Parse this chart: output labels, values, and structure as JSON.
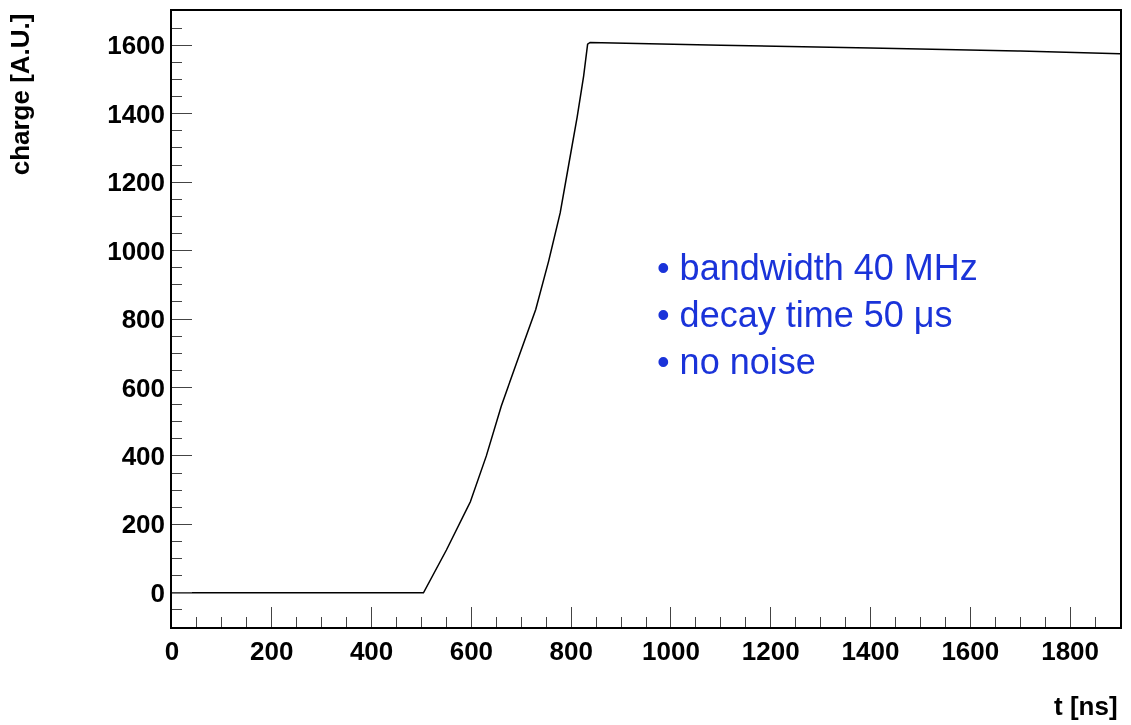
{
  "chart_data": {
    "type": "line",
    "xlabel": "t [ns]",
    "ylabel": "charge [A.U.]",
    "x": [
      0,
      504,
      550,
      598,
      630,
      660,
      695,
      729,
      755,
      778,
      795,
      812,
      825,
      833,
      838,
      1100,
      1400,
      1700,
      1900
    ],
    "series": [
      {
        "color": "#000000",
        "values": [
          0,
          0,
          125,
          266,
          400,
          546,
          690,
          828,
          970,
          1110,
          1250,
          1390,
          1510,
          1603,
          1608,
          1600,
          1592,
          1583,
          1575
        ]
      }
    ],
    "xlim": [
      0,
      1900
    ],
    "ylim": [
      -100,
      1700
    ],
    "xticks": [
      0,
      200,
      400,
      600,
      800,
      1000,
      1200,
      1400,
      1600,
      1800
    ],
    "yticks": [
      0,
      200,
      400,
      600,
      800,
      1000,
      1200,
      1400,
      1600
    ],
    "annotations": [
      "• bandwidth 40 MHz",
      "• decay time 50 μs",
      "• no noise"
    ],
    "legend": false
  }
}
